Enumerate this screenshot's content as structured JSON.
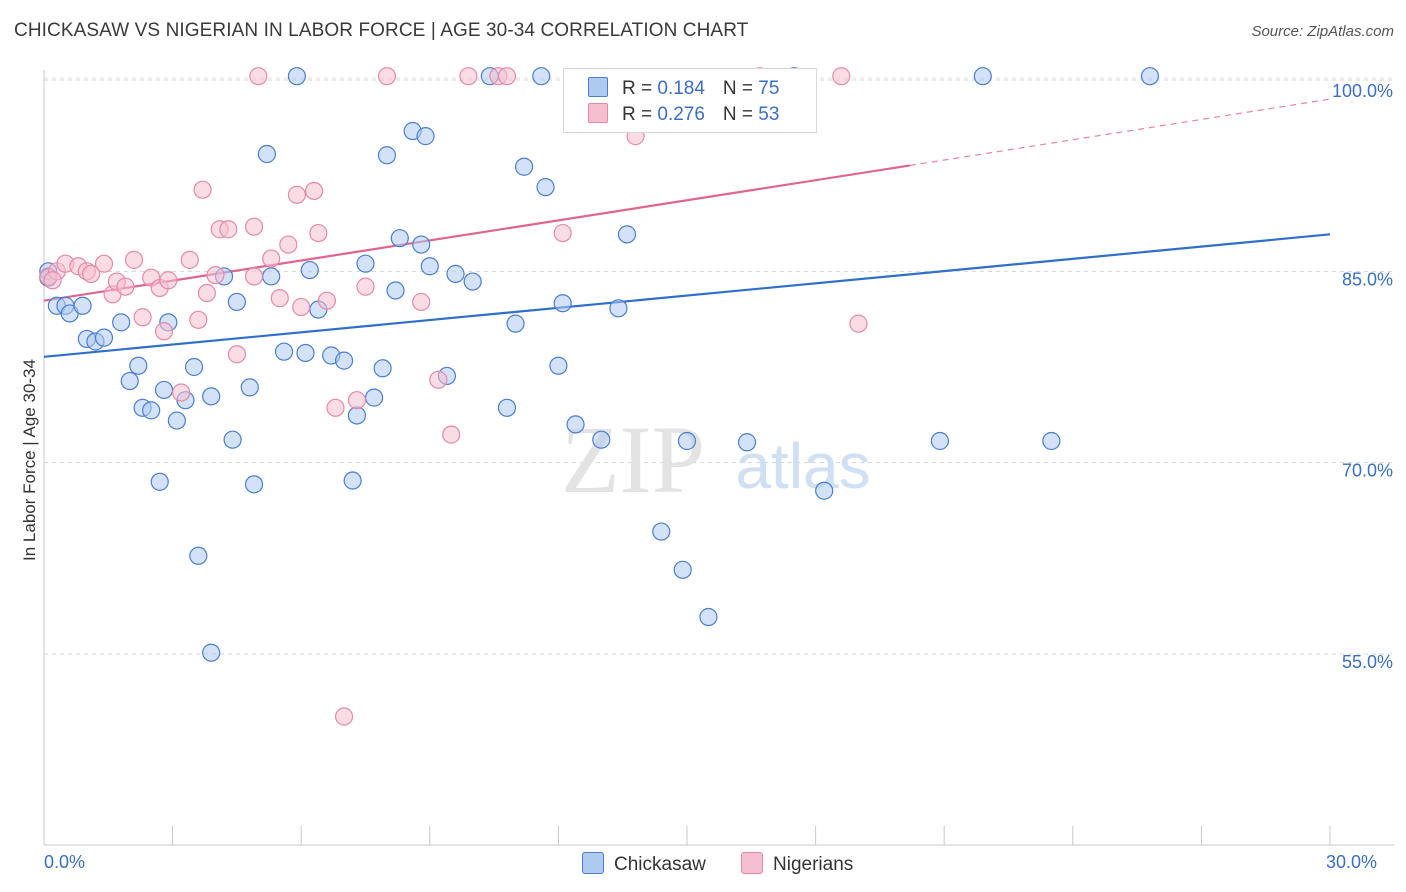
{
  "title": "CHICKASAW VS NIGERIAN IN LABOR FORCE | AGE 30-34 CORRELATION CHART",
  "source": "Source: ZipAtlas.com",
  "watermark": {
    "zip": "ZIP",
    "atlas": "atlas"
  },
  "legend_box": {
    "rows": [
      {
        "r_label": "R = ",
        "r_value": "0.184",
        "n_label": "N = ",
        "n_value": "75"
      },
      {
        "r_label": "R = ",
        "r_value": "0.276",
        "n_label": "N = ",
        "n_value": "53"
      }
    ]
  },
  "bottom_legend": [
    "Chickasaw",
    "Nigerians"
  ],
  "colors": {
    "chickasaw_fill": "#aecbef",
    "chickasaw_stroke": "#4a7fd0",
    "chickasaw_line": "#2f6fcc",
    "nigerians_fill": "#f6bfd0",
    "nigerians_stroke": "#e48aa8",
    "nigerians_line": "#e06490",
    "tick_label": "#3b6fc4",
    "grid": "#d6d6d6"
  },
  "chart_data": {
    "type": "scatter",
    "title": "CHICKASAW VS NIGERIAN IN LABOR FORCE | AGE 30-34 CORRELATION CHART",
    "xlabel": "",
    "ylabel": "In Labor Force | Age 30-34",
    "xlim": [
      0,
      30
    ],
    "ylim": [
      40,
      102
    ],
    "x_tick_labels": [
      "0.0%",
      "30.0%"
    ],
    "y_ticks": [
      55,
      70,
      85,
      100
    ],
    "y_tick_labels": [
      "55.0%",
      "70.0%",
      "85.0%",
      "100.0%"
    ],
    "grid": true,
    "legend_position": "top-center",
    "series": [
      {
        "name": "Chickasaw",
        "r": 0.184,
        "n": 75,
        "trend": {
          "x": [
            0,
            30
          ],
          "y": [
            78.3,
            87.9
          ]
        },
        "points": [
          [
            0.1,
            85.0
          ],
          [
            0.1,
            84.5
          ],
          [
            0.3,
            82.3
          ],
          [
            0.5,
            82.3
          ],
          [
            0.6,
            81.7
          ],
          [
            0.9,
            82.3
          ],
          [
            1.0,
            79.7
          ],
          [
            1.2,
            79.5
          ],
          [
            1.4,
            79.8
          ],
          [
            1.8,
            81.0
          ],
          [
            2.2,
            77.6
          ],
          [
            2.0,
            76.4
          ],
          [
            2.3,
            74.3
          ],
          [
            2.5,
            74.1
          ],
          [
            2.7,
            68.5
          ],
          [
            2.8,
            75.7
          ],
          [
            2.9,
            81.0
          ],
          [
            3.1,
            73.3
          ],
          [
            3.3,
            74.9
          ],
          [
            3.5,
            77.5
          ],
          [
            3.6,
            62.7
          ],
          [
            3.9,
            75.2
          ],
          [
            3.9,
            55.1
          ],
          [
            4.2,
            84.6
          ],
          [
            4.4,
            71.8
          ],
          [
            4.5,
            82.6
          ],
          [
            4.8,
            75.9
          ],
          [
            4.9,
            68.3
          ],
          [
            5.2,
            94.2
          ],
          [
            5.3,
            84.6
          ],
          [
            5.6,
            78.7
          ],
          [
            5.9,
            100.3
          ],
          [
            6.1,
            78.6
          ],
          [
            6.2,
            85.1
          ],
          [
            6.4,
            82.0
          ],
          [
            6.7,
            78.4
          ],
          [
            7.0,
            78.0
          ],
          [
            7.2,
            68.6
          ],
          [
            7.3,
            73.7
          ],
          [
            7.5,
            85.6
          ],
          [
            7.7,
            75.1
          ],
          [
            7.9,
            77.4
          ],
          [
            8.0,
            94.1
          ],
          [
            8.2,
            83.5
          ],
          [
            8.3,
            87.6
          ],
          [
            8.6,
            96.0
          ],
          [
            8.8,
            87.1
          ],
          [
            8.9,
            95.6
          ],
          [
            9.0,
            85.4
          ],
          [
            9.4,
            76.8
          ],
          [
            9.6,
            84.8
          ],
          [
            10.0,
            84.2
          ],
          [
            10.4,
            100.3
          ],
          [
            10.8,
            74.3
          ],
          [
            11.0,
            80.9
          ],
          [
            11.2,
            93.2
          ],
          [
            11.6,
            100.3
          ],
          [
            11.7,
            91.6
          ],
          [
            12.0,
            77.6
          ],
          [
            12.1,
            82.5
          ],
          [
            12.4,
            73.0
          ],
          [
            13.0,
            71.8
          ],
          [
            13.4,
            82.1
          ],
          [
            13.6,
            87.9
          ],
          [
            14.4,
            64.6
          ],
          [
            14.9,
            61.6
          ],
          [
            15.0,
            71.7
          ],
          [
            15.5,
            57.9
          ],
          [
            16.4,
            71.6
          ],
          [
            17.5,
            100.3
          ],
          [
            18.2,
            67.8
          ],
          [
            20.9,
            71.7
          ],
          [
            21.9,
            100.3
          ],
          [
            23.5,
            71.7
          ],
          [
            25.8,
            100.3
          ]
        ]
      },
      {
        "name": "Nigerians",
        "r": 0.276,
        "n": 53,
        "trend": {
          "x": [
            0,
            20.2
          ],
          "y": [
            82.7,
            93.3
          ]
        },
        "trend_dashed": {
          "x": [
            20.2,
            30
          ],
          "y": [
            93.3,
            98.5
          ]
        },
        "points": [
          [
            0.1,
            84.6
          ],
          [
            0.3,
            85.0
          ],
          [
            0.5,
            85.6
          ],
          [
            0.8,
            85.4
          ],
          [
            1.0,
            85.0
          ],
          [
            1.1,
            84.8
          ],
          [
            1.4,
            85.6
          ],
          [
            1.6,
            83.2
          ],
          [
            1.7,
            84.2
          ],
          [
            1.9,
            83.8
          ],
          [
            2.1,
            85.9
          ],
          [
            2.3,
            81.4
          ],
          [
            2.5,
            84.5
          ],
          [
            2.7,
            83.7
          ],
          [
            2.8,
            80.3
          ],
          [
            2.9,
            84.3
          ],
          [
            3.2,
            75.5
          ],
          [
            3.4,
            85.9
          ],
          [
            3.6,
            81.2
          ],
          [
            3.7,
            91.4
          ],
          [
            3.8,
            83.3
          ],
          [
            4.0,
            84.7
          ],
          [
            4.1,
            88.3
          ],
          [
            4.3,
            88.3
          ],
          [
            4.5,
            78.5
          ],
          [
            4.9,
            84.6
          ],
          [
            4.9,
            88.5
          ],
          [
            5.0,
            100.3
          ],
          [
            5.3,
            86.0
          ],
          [
            5.5,
            82.9
          ],
          [
            5.7,
            87.1
          ],
          [
            5.9,
            91.0
          ],
          [
            6.0,
            82.2
          ],
          [
            6.3,
            91.3
          ],
          [
            6.4,
            88.0
          ],
          [
            6.6,
            82.7
          ],
          [
            6.8,
            74.3
          ],
          [
            7.0,
            50.1
          ],
          [
            7.3,
            74.9
          ],
          [
            7.5,
            83.8
          ],
          [
            8.0,
            100.3
          ],
          [
            8.8,
            82.6
          ],
          [
            9.2,
            76.5
          ],
          [
            9.5,
            72.2
          ],
          [
            9.9,
            100.3
          ],
          [
            10.6,
            100.3
          ],
          [
            10.8,
            100.3
          ],
          [
            12.1,
            88.0
          ],
          [
            13.8,
            95.6
          ],
          [
            16.7,
            100.3
          ],
          [
            18.6,
            100.3
          ],
          [
            19.0,
            80.9
          ],
          [
            0.2,
            84.3
          ]
        ]
      }
    ]
  }
}
